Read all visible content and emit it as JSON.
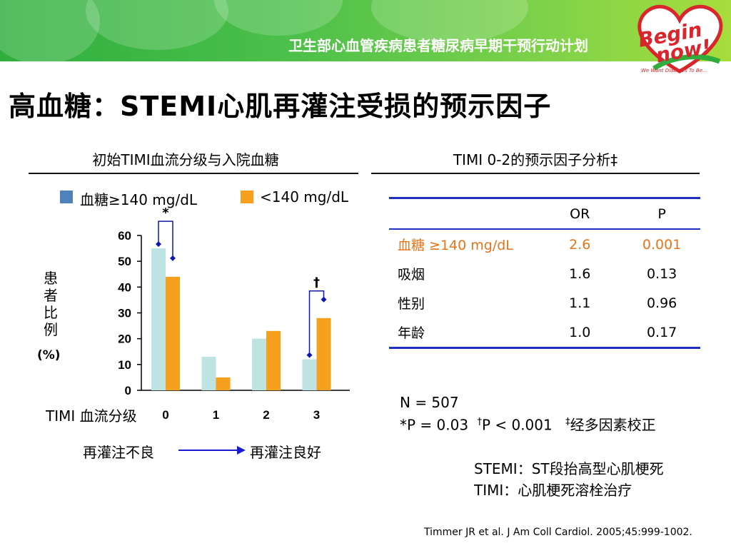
{
  "header": {
    "banner_title": "卫生部心血管疾病患者糖尿病早期干预行动计划",
    "logo_line1": "Begin",
    "logo_line2": "now!",
    "logo_tagline": "We Want Diabetes To Be..."
  },
  "slide_title": "高血糖：STEMI心肌再灌注受损的预示因子",
  "left_section": {
    "heading": "初始TIMI血流分级与入院血糖"
  },
  "right_section": {
    "heading": "TIMI 0-2的预示因子分析‡"
  },
  "colors": {
    "hyper": "#bde3e3",
    "normal": "#f7a01d",
    "legend_hyper": "#4f81bd",
    "accent_text": "#e5741b",
    "bracket": "#0f17b3",
    "arrow": "#1a1ad0"
  },
  "chart_data": {
    "type": "bar",
    "categories": [
      "0",
      "1",
      "2",
      "3"
    ],
    "series": [
      {
        "name": "血糖≥140 mg/dL",
        "values": [
          55,
          13,
          20,
          12
        ]
      },
      {
        "name": "<140 mg/dL",
        "values": [
          44,
          5,
          23,
          28
        ]
      }
    ],
    "ylim": [
      0,
      60
    ],
    "yticks": [
      "0",
      "10",
      "20",
      "30",
      "40",
      "50",
      "60"
    ],
    "ylabel": "患者比例",
    "ylabel_unit": "(%)",
    "xlabel": "TIMI 血流分级",
    "annotations": [
      {
        "category": "0",
        "symbol": "*"
      },
      {
        "category": "3",
        "symbol": "†"
      }
    ]
  },
  "reperfusion": {
    "poor": "再灌注不良",
    "good": "再灌注良好"
  },
  "predictor_table": {
    "headers": [
      "",
      "OR",
      "P"
    ],
    "rows": [
      {
        "factor": "血糖 ≥140 mg/dL",
        "or": "2.6",
        "p": "0.001"
      },
      {
        "factor": "吸烟",
        "or": "1.6",
        "p": "0.13"
      },
      {
        "factor": "性别",
        "or": "1.1",
        "p": "0.96"
      },
      {
        "factor": "年龄",
        "or": "1.0",
        "p": "0.17"
      }
    ]
  },
  "stats": {
    "n": "N = 507",
    "p1": "*P = 0.03",
    "p2_mark": "†",
    "p2": "P < 0.001",
    "adj_mark": "‡",
    "adj": "经多因素校正"
  },
  "abbreviations": [
    "STEMI：ST段抬高型心肌梗死",
    "TIMI：心肌梗死溶栓治疗"
  ],
  "citation": "Timmer JR et al. J Am Coll Cardiol. 2005;45:999-1002."
}
